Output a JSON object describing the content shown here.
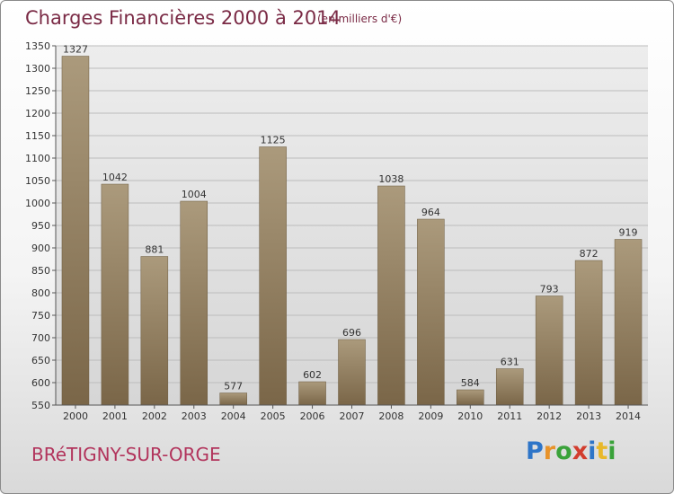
{
  "header": {
    "title": "Charges Financières 2000 à 2014",
    "subtitle": "(en milliers d'€)"
  },
  "footer": {
    "city": "BRéTIGNY-SUR-ORGE",
    "logo_text": "Proxiti"
  },
  "colors": {
    "bar_top": "#ab9a7c",
    "bar_bottom": "#7a6648",
    "title": "#7a2a45",
    "city": "#b2345c"
  },
  "chart_data": {
    "type": "bar",
    "title": "Charges Financières 2000 à 2014",
    "subtitle": "(en milliers d'€)",
    "categories": [
      "2000",
      "2001",
      "2002",
      "2003",
      "2004",
      "2005",
      "2006",
      "2007",
      "2008",
      "2009",
      "2010",
      "2011",
      "2012",
      "2013",
      "2014"
    ],
    "values": [
      1327,
      1042,
      881,
      1004,
      577,
      1125,
      602,
      696,
      1038,
      964,
      584,
      631,
      793,
      872,
      919
    ],
    "ylim": [
      550,
      1350
    ],
    "yticks": [
      550,
      600,
      650,
      700,
      750,
      800,
      850,
      900,
      950,
      1000,
      1050,
      1100,
      1150,
      1200,
      1250,
      1300,
      1350
    ],
    "grid": true,
    "xlabel": "",
    "ylabel": ""
  }
}
